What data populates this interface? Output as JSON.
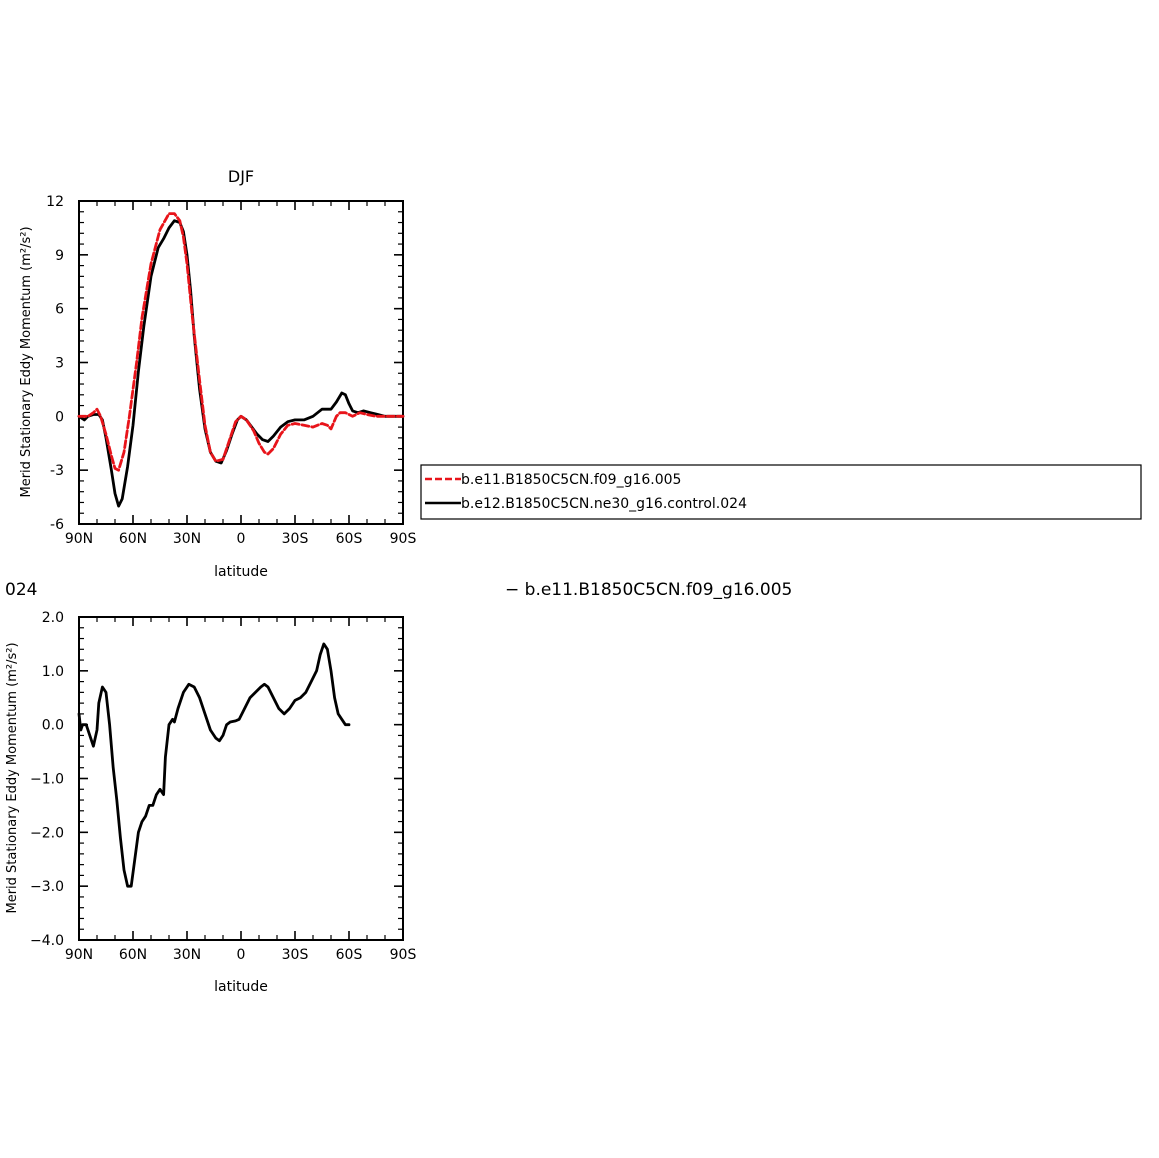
{
  "colors": {
    "red": "#e8141a",
    "black": "#000000"
  },
  "legend": {
    "items": [
      {
        "label": "b.e11.B1850C5CN.f09_g16.005",
        "color": "#e8141a",
        "dash": true
      },
      {
        "label": "b.e12.B1850C5CN.ne30_g16.control.024",
        "color": "#000000",
        "dash": false
      }
    ]
  },
  "bottom_title": {
    "left": "024",
    "right": "− b.e11.B1850C5CN.f09_g16.005"
  },
  "chart_data": [
    {
      "type": "line",
      "title": "DJF",
      "xlabel": "latitude",
      "ylabel": "Merid Stationary Eddy Momentum  (m²/s²)",
      "xlim": [
        -90,
        90
      ],
      "ylim": [
        -6,
        12
      ],
      "xticks": [
        -90,
        -60,
        -30,
        0,
        30,
        60,
        90
      ],
      "xtick_labels": [
        "90N",
        "60N",
        "30N",
        "0",
        "30S",
        "60S",
        "90S"
      ],
      "yticks": [
        -6,
        -3,
        0,
        3,
        6,
        9,
        12
      ],
      "ytick_labels": [
        "-6",
        "-3",
        "0",
        "3",
        "6",
        "9",
        "12"
      ],
      "grid": false,
      "series": [
        {
          "name": "b.e11.B1850C5CN.f09_g16.005",
          "color": "#e8141a",
          "dash": true,
          "points": [
            [
              -90,
              0.0
            ],
            [
              -85,
              0.0
            ],
            [
              -82,
              0.2
            ],
            [
              -80,
              0.4
            ],
            [
              -78,
              0.0
            ],
            [
              -75,
              -1.0
            ],
            [
              -72,
              -2.2
            ],
            [
              -70,
              -2.9
            ],
            [
              -68,
              -3.0
            ],
            [
              -65,
              -2.0
            ],
            [
              -62,
              0.0
            ],
            [
              -58,
              3.0
            ],
            [
              -55,
              5.5
            ],
            [
              -50,
              8.5
            ],
            [
              -45,
              10.4
            ],
            [
              -40,
              11.3
            ],
            [
              -37,
              11.3
            ],
            [
              -34,
              10.9
            ],
            [
              -32,
              10.0
            ],
            [
              -30,
              8.5
            ],
            [
              -27,
              5.5
            ],
            [
              -23,
              2.0
            ],
            [
              -20,
              -0.5
            ],
            [
              -17,
              -2.0
            ],
            [
              -14,
              -2.5
            ],
            [
              -10,
              -2.4
            ],
            [
              -7,
              -1.5
            ],
            [
              -3,
              -0.3
            ],
            [
              0,
              0.0
            ],
            [
              3,
              -0.2
            ],
            [
              7,
              -0.8
            ],
            [
              10,
              -1.5
            ],
            [
              13,
              -2.0
            ],
            [
              15,
              -2.1
            ],
            [
              18,
              -1.8
            ],
            [
              22,
              -1.0
            ],
            [
              26,
              -0.5
            ],
            [
              30,
              -0.4
            ],
            [
              35,
              -0.5
            ],
            [
              40,
              -0.6
            ],
            [
              45,
              -0.4
            ],
            [
              48,
              -0.5
            ],
            [
              50,
              -0.7
            ],
            [
              53,
              0.0
            ],
            [
              55,
              0.2
            ],
            [
              58,
              0.2
            ],
            [
              62,
              0.0
            ],
            [
              66,
              0.2
            ],
            [
              70,
              0.1
            ],
            [
              75,
              0.0
            ],
            [
              80,
              0.0
            ],
            [
              85,
              0.0
            ],
            [
              90,
              0.0
            ]
          ]
        },
        {
          "name": "b.e12.B1850C5CN.ne30_g16.control.024",
          "color": "#000000",
          "dash": false,
          "points": [
            [
              -90,
              0.0
            ],
            [
              -87,
              -0.2
            ],
            [
              -85,
              0.0
            ],
            [
              -82,
              0.1
            ],
            [
              -79,
              0.1
            ],
            [
              -77,
              -0.2
            ],
            [
              -75,
              -1.2
            ],
            [
              -72,
              -3.0
            ],
            [
              -70,
              -4.3
            ],
            [
              -68,
              -5.0
            ],
            [
              -66,
              -4.6
            ],
            [
              -63,
              -2.8
            ],
            [
              -60,
              -0.5
            ],
            [
              -57,
              2.5
            ],
            [
              -54,
              5.0
            ],
            [
              -50,
              7.8
            ],
            [
              -46,
              9.4
            ],
            [
              -43,
              9.9
            ],
            [
              -40,
              10.5
            ],
            [
              -37,
              10.9
            ],
            [
              -34,
              10.8
            ],
            [
              -32,
              10.3
            ],
            [
              -30,
              9.0
            ],
            [
              -28,
              7.0
            ],
            [
              -26,
              4.5
            ],
            [
              -23,
              1.5
            ],
            [
              -20,
              -0.7
            ],
            [
              -17,
              -2.0
            ],
            [
              -14,
              -2.5
            ],
            [
              -11,
              -2.6
            ],
            [
              -8,
              -1.9
            ],
            [
              -5,
              -1.0
            ],
            [
              -2,
              -0.2
            ],
            [
              0,
              0.0
            ],
            [
              3,
              -0.2
            ],
            [
              6,
              -0.6
            ],
            [
              9,
              -1.0
            ],
            [
              12,
              -1.3
            ],
            [
              15,
              -1.4
            ],
            [
              18,
              -1.1
            ],
            [
              22,
              -0.6
            ],
            [
              26,
              -0.3
            ],
            [
              30,
              -0.2
            ],
            [
              35,
              -0.2
            ],
            [
              40,
              0.0
            ],
            [
              45,
              0.4
            ],
            [
              50,
              0.4
            ],
            [
              53,
              0.8
            ],
            [
              56,
              1.3
            ],
            [
              58,
              1.2
            ],
            [
              60,
              0.7
            ],
            [
              62,
              0.3
            ],
            [
              65,
              0.2
            ],
            [
              68,
              0.3
            ],
            [
              72,
              0.2
            ],
            [
              76,
              0.1
            ],
            [
              80,
              0.0
            ],
            [
              85,
              0.0
            ],
            [
              90,
              0.0
            ]
          ]
        }
      ]
    },
    {
      "type": "line",
      "title": "024  − b.e11.B1850C5CN.f09_g16.005",
      "xlabel": "latitude",
      "ylabel": "Merid Stationary Eddy Momentum  (m²/s²)",
      "xlim": [
        -90,
        90
      ],
      "ylim": [
        -4,
        2
      ],
      "xticks": [
        -90,
        -60,
        -30,
        0,
        30,
        60,
        90
      ],
      "xtick_labels": [
        "90N",
        "60N",
        "30N",
        "0",
        "30S",
        "60S",
        "90S"
      ],
      "yticks": [
        -4,
        -3,
        -2,
        -1,
        0,
        1,
        2
      ],
      "ytick_labels": [
        "−4.0",
        "−3.0",
        "−2.0",
        "−1.0",
        "0.0",
        "1.0",
        "2.0"
      ],
      "grid": false,
      "series": [
        {
          "color": "#000000",
          "dash": false,
          "points": [
            [
              -90,
              0.2
            ],
            [
              -89,
              -0.1
            ],
            [
              -88,
              0.0
            ],
            [
              -86,
              0.0
            ],
            [
              -84,
              -0.2
            ],
            [
              -82,
              -0.4
            ],
            [
              -80,
              -0.1
            ],
            [
              -79,
              0.4
            ],
            [
              -77,
              0.7
            ],
            [
              -75,
              0.6
            ],
            [
              -73,
              0.0
            ],
            [
              -71,
              -0.8
            ],
            [
              -69,
              -1.4
            ],
            [
              -67,
              -2.1
            ],
            [
              -65,
              -2.7
            ],
            [
              -63,
              -3.0
            ],
            [
              -61,
              -3.0
            ],
            [
              -59,
              -2.5
            ],
            [
              -57,
              -2.0
            ],
            [
              -55,
              -1.8
            ],
            [
              -53,
              -1.7
            ],
            [
              -51,
              -1.5
            ],
            [
              -49,
              -1.5
            ],
            [
              -47,
              -1.3
            ],
            [
              -45,
              -1.2
            ],
            [
              -43,
              -1.3
            ],
            [
              -42,
              -0.6
            ],
            [
              -40,
              0.0
            ],
            [
              -38,
              0.1
            ],
            [
              -37,
              0.05
            ],
            [
              -35,
              0.3
            ],
            [
              -32,
              0.6
            ],
            [
              -29,
              0.75
            ],
            [
              -26,
              0.7
            ],
            [
              -23,
              0.5
            ],
            [
              -20,
              0.2
            ],
            [
              -17,
              -0.1
            ],
            [
              -14,
              -0.25
            ],
            [
              -12,
              -0.3
            ],
            [
              -10,
              -0.2
            ],
            [
              -8,
              0.0
            ],
            [
              -6,
              0.05
            ],
            [
              -3,
              0.07
            ],
            [
              -1,
              0.1
            ],
            [
              2,
              0.3
            ],
            [
              5,
              0.5
            ],
            [
              8,
              0.6
            ],
            [
              11,
              0.7
            ],
            [
              13,
              0.75
            ],
            [
              15,
              0.7
            ],
            [
              18,
              0.5
            ],
            [
              21,
              0.3
            ],
            [
              24,
              0.2
            ],
            [
              27,
              0.3
            ],
            [
              30,
              0.45
            ],
            [
              33,
              0.5
            ],
            [
              36,
              0.6
            ],
            [
              39,
              0.8
            ],
            [
              42,
              1.0
            ],
            [
              44,
              1.3
            ],
            [
              46,
              1.5
            ],
            [
              48,
              1.4
            ],
            [
              50,
              1.0
            ],
            [
              52,
              0.5
            ],
            [
              54,
              0.2
            ],
            [
              56,
              0.1
            ],
            [
              58,
              0.0
            ],
            [
              60,
              0.0
            ]
          ]
        }
      ]
    }
  ]
}
